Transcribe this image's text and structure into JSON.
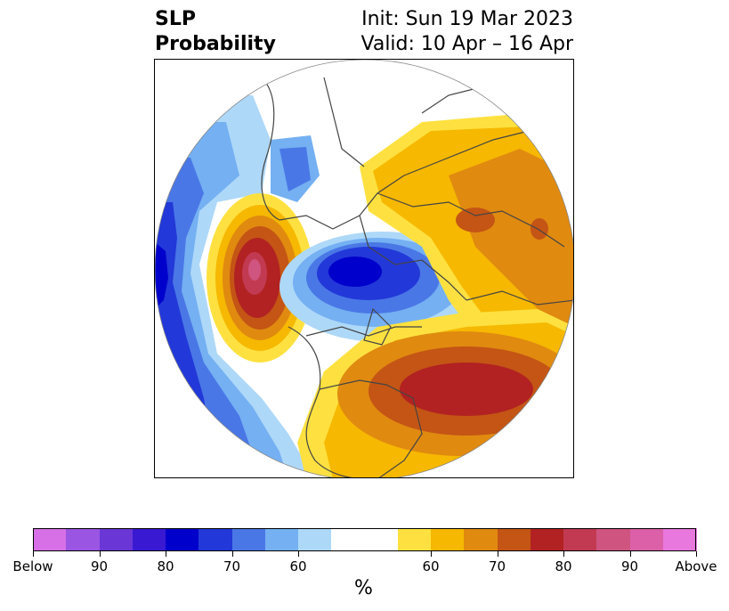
{
  "title": {
    "line1": "SLP",
    "line2": "Probability"
  },
  "info": {
    "init": "Init: Sun 19 Mar 2023",
    "valid": "Valid: 10 Apr – 16 Apr"
  },
  "colorbar": {
    "unit": "%",
    "colors": [
      "#d770e6",
      "#9a55e2",
      "#6a37d6",
      "#3a19d2",
      "#0000cc",
      "#2238d8",
      "#4a77e6",
      "#74b0f2",
      "#aed8f8",
      "#ffffff",
      "#ffffff",
      "#fee140",
      "#f6b800",
      "#e08a10",
      "#c45515",
      "#b22222",
      "#c23a52",
      "#cf5580",
      "#db60a8",
      "#e878de"
    ],
    "tick_labels": [
      "Below",
      "90",
      "80",
      "70",
      "60",
      "60",
      "70",
      "80",
      "90",
      "Above"
    ]
  },
  "map": {
    "projection": "north-polar-stereographic",
    "features": [
      {
        "name": "negative-anomaly-gulf-of-alaska-west",
        "sign": "below",
        "max_pct": 80
      },
      {
        "name": "positive-anomaly-northeast-pacific",
        "sign": "above",
        "max_pct": 90
      },
      {
        "name": "negative-anomaly-arctic",
        "sign": "below",
        "max_pct": 80
      },
      {
        "name": "positive-anomaly-north-atlantic",
        "sign": "above",
        "max_pct": 80
      },
      {
        "name": "positive-anomaly-eurasia",
        "sign": "above",
        "max_pct": 80
      }
    ]
  }
}
